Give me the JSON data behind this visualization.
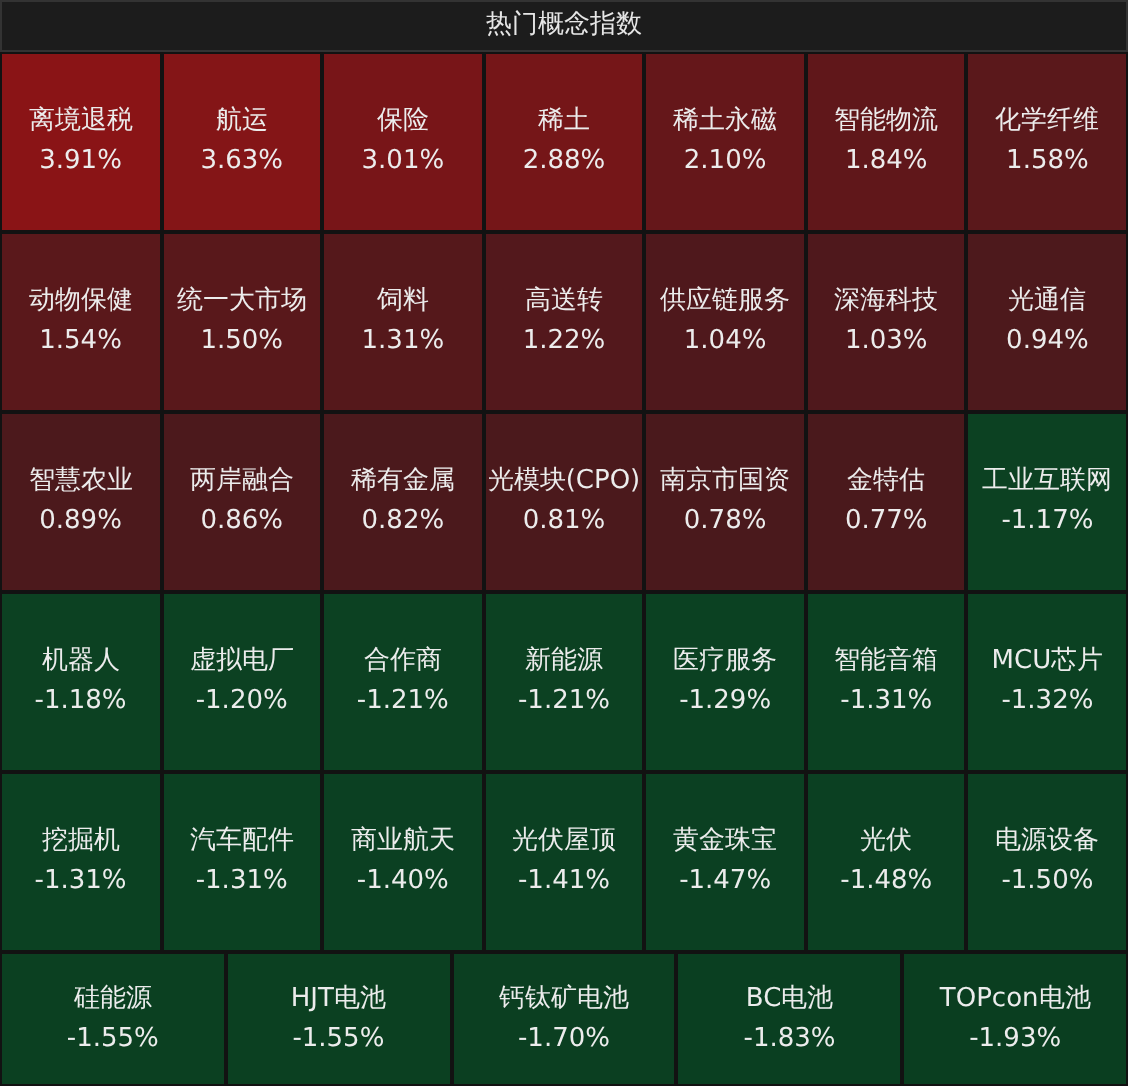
{
  "chart_data": {
    "type": "other",
    "title": "热门概念指数",
    "categories": [
      "离境退税",
      "航运",
      "保险",
      "稀土",
      "稀土永磁",
      "智能物流",
      "化学纤维",
      "动物保健",
      "统一大市场",
      "饲料",
      "高送转",
      "供应链服务",
      "深海科技",
      "光通信",
      "智慧农业",
      "两岸融合",
      "稀有金属",
      "光模块(CPO)",
      "南京市国资",
      "金特估",
      "工业互联网",
      "机器人",
      "虚拟电厂",
      "合作商",
      "新能源",
      "医疗服务",
      "智能音箱",
      "MCU芯片",
      "挖掘机",
      "汽车配件",
      "商业航天",
      "光伏屋顶",
      "黄金珠宝",
      "光伏",
      "电源设备",
      "硅能源",
      "HJT电池",
      "钙钛矿电池",
      "BC电池",
      "TOPcon电池"
    ],
    "values": [
      3.91,
      3.63,
      3.01,
      2.88,
      2.1,
      1.84,
      1.58,
      1.54,
      1.5,
      1.31,
      1.22,
      1.04,
      1.03,
      0.94,
      0.89,
      0.86,
      0.82,
      0.81,
      0.78,
      0.77,
      -1.17,
      -1.18,
      -1.2,
      -1.21,
      -1.21,
      -1.29,
      -1.31,
      -1.32,
      -1.31,
      -1.31,
      -1.4,
      -1.41,
      -1.47,
      -1.48,
      -1.5,
      -1.55,
      -1.55,
      -1.7,
      -1.83,
      -1.93
    ],
    "value_labels": [
      "3.91%",
      "3.63%",
      "3.01%",
      "2.88%",
      "2.10%",
      "1.84%",
      "1.58%",
      "1.54%",
      "1.50%",
      "1.31%",
      "1.22%",
      "1.04%",
      "1.03%",
      "0.94%",
      "0.89%",
      "0.86%",
      "0.82%",
      "0.81%",
      "0.78%",
      "0.77%",
      "-1.17%",
      "-1.18%",
      "-1.20%",
      "-1.21%",
      "-1.21%",
      "-1.29%",
      "-1.31%",
      "-1.32%",
      "-1.31%",
      "-1.31%",
      "-1.40%",
      "-1.41%",
      "-1.47%",
      "-1.48%",
      "-1.50%",
      "-1.55%",
      "-1.55%",
      "-1.70%",
      "-1.83%",
      "-1.93%"
    ]
  }
}
